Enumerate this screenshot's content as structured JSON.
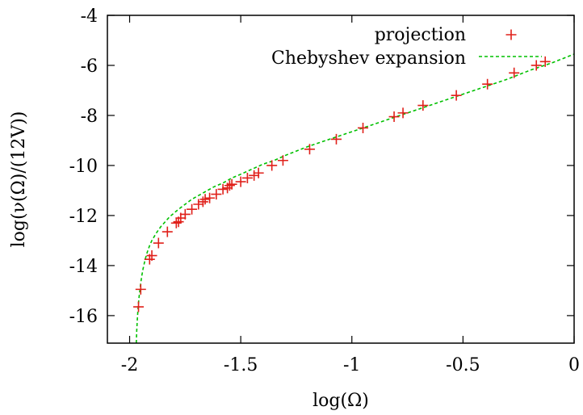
{
  "chart_data": {
    "type": "scatter",
    "title": "",
    "xlabel": "log(Ω)",
    "ylabel": "log(ν(Ω)/(12V))",
    "xlim": [
      -2.1,
      0
    ],
    "ylim": [
      -17.1,
      -4
    ],
    "x_ticks": [
      -2,
      -1.5,
      -1,
      -0.5,
      0
    ],
    "x_tick_labels": [
      "-2",
      "-1.5",
      "-1",
      "-0.5",
      "0"
    ],
    "y_ticks": [
      -16,
      -14,
      -12,
      -10,
      -8,
      -6,
      -4
    ],
    "y_tick_labels": [
      "-16",
      "-14",
      "-12",
      "-10",
      "-8",
      "-6",
      "-4"
    ],
    "grid": false,
    "legend_position": "top-right",
    "colors": {
      "projection": "#e0201a",
      "chebyshev": "#00c000",
      "axis": "#000000"
    },
    "series": [
      {
        "name": "projection",
        "type": "scatter",
        "marker": "plus",
        "x": [
          -0.13,
          -0.17,
          -0.27,
          -0.39,
          -0.53,
          -0.68,
          -0.77,
          -0.81,
          -0.95,
          -1.07,
          -1.19,
          -1.31,
          -1.36,
          -1.42,
          -1.44,
          -1.47,
          -1.5,
          -1.54,
          -1.55,
          -1.56,
          -1.58,
          -1.61,
          -1.64,
          -1.66,
          -1.67,
          -1.69,
          -1.72,
          -1.75,
          -1.77,
          -1.78,
          -1.79,
          -1.83,
          -1.87,
          -1.9,
          -1.91,
          -1.95,
          -1.96
        ],
        "y": [
          -5.85,
          -6.0,
          -6.3,
          -6.75,
          -7.2,
          -7.6,
          -7.9,
          -8.05,
          -8.5,
          -8.95,
          -9.35,
          -9.8,
          -10.0,
          -10.3,
          -10.4,
          -10.5,
          -10.65,
          -10.75,
          -10.8,
          -10.9,
          -10.95,
          -11.15,
          -11.3,
          -11.35,
          -11.45,
          -11.55,
          -11.75,
          -11.95,
          -12.1,
          -12.25,
          -12.3,
          -12.65,
          -13.1,
          -13.6,
          -13.75,
          -14.95,
          -15.65
        ]
      },
      {
        "name": "Chebyshev expansion",
        "type": "line",
        "style": "dashed",
        "x": [
          -1.97,
          -1.968,
          -1.965,
          -1.962,
          -1.958,
          -1.954,
          -1.95,
          -1.945,
          -1.94,
          -1.935,
          -1.93,
          -1.92,
          -1.91,
          -1.9,
          -1.88,
          -1.86,
          -1.84,
          -1.82,
          -1.8,
          -1.78,
          -1.75,
          -1.72,
          -1.69,
          -1.66,
          -1.62,
          -1.58,
          -1.54,
          -1.5,
          -1.45,
          -1.4,
          -1.35,
          -1.3,
          -1.2,
          -1.1,
          -1.0,
          -0.9,
          -0.8,
          -0.7,
          -0.6,
          -0.5,
          -0.4,
          -0.3,
          -0.2,
          -0.1,
          0.0
        ],
        "y": [
          -17.1,
          -16.6,
          -16.1,
          -15.7,
          -15.3,
          -15.0,
          -14.7,
          -14.4,
          -14.15,
          -13.95,
          -13.75,
          -13.45,
          -13.2,
          -13.0,
          -12.7,
          -12.45,
          -12.25,
          -12.05,
          -11.9,
          -11.75,
          -11.55,
          -11.35,
          -11.2,
          -11.05,
          -10.85,
          -10.7,
          -10.5,
          -10.35,
          -10.15,
          -9.95,
          -9.8,
          -9.6,
          -9.25,
          -8.95,
          -8.65,
          -8.35,
          -8.05,
          -7.75,
          -7.45,
          -7.15,
          -6.85,
          -6.55,
          -6.2,
          -5.9,
          -5.55
        ]
      }
    ],
    "legend": [
      {
        "label": "projection"
      },
      {
        "label": "Chebyshev expansion"
      }
    ]
  }
}
